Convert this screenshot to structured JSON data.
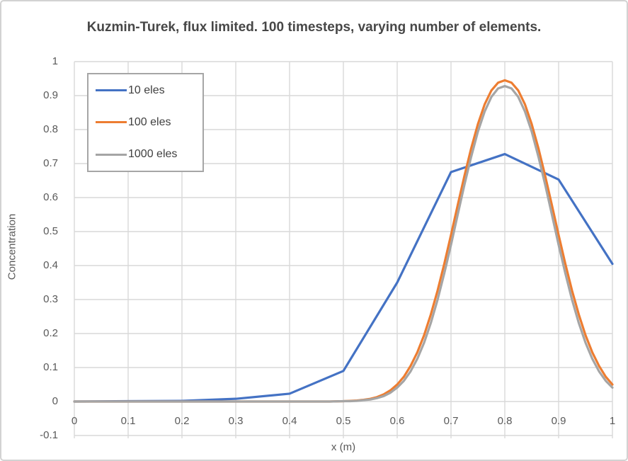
{
  "chart": {
    "title": "Kuzmin-Turek, flux limited. 100 timesteps, varying number of elements.",
    "x_axis": {
      "label": "x (m)",
      "ticks": [
        "0",
        "0.1",
        "0.2",
        "0.3",
        "0.4",
        "0.5",
        "0.6",
        "0.7",
        "0.8",
        "0.9",
        "1"
      ]
    },
    "y_axis": {
      "label": "Concentration",
      "ticks": [
        "1",
        "0.9",
        "0.8",
        "0.7",
        "0.6",
        "0.5",
        "0.4",
        "0.3",
        "0.2",
        "0.1",
        "0",
        "-0.1"
      ]
    },
    "colors": {
      "gridline": "#d9d9d9",
      "axis_text": "#595959",
      "title_text": "#474747",
      "legend_border": "#a6a6a6",
      "series_blue": "#4472C4",
      "series_orange": "#ED7D31",
      "series_gray": "#A5A5A5"
    }
  },
  "chart_data": {
    "type": "line",
    "title": "Kuzmin-Turek, flux limited. 100 timesteps, varying number of elements.",
    "xlabel": "x (m)",
    "ylabel": "Concentration",
    "xlim": [
      0,
      1
    ],
    "ylim": [
      -0.1,
      1
    ],
    "x_tick_step": 0.1,
    "y_tick_step": 0.1,
    "grid": true,
    "legend_position": "inside-top-left",
    "series": [
      {
        "name": "10 eles",
        "color": "#4472C4",
        "x": [
          0,
          0.1,
          0.2,
          0.3,
          0.4,
          0.5,
          0.6,
          0.7,
          0.8,
          0.9,
          1
        ],
        "y": [
          0,
          0.001,
          0.002,
          0.008,
          0.023,
          0.09,
          0.35,
          0.675,
          0.728,
          0.653,
          0.405
        ]
      },
      {
        "name": "100 eles",
        "color": "#ED7D31",
        "x": [
          0,
          0.1,
          0.2,
          0.3,
          0.4,
          0.45,
          0.475,
          0.5,
          0.5125,
          0.525,
          0.5375,
          0.55,
          0.5625,
          0.575,
          0.5875,
          0.6,
          0.6125,
          0.625,
          0.6375,
          0.65,
          0.6625,
          0.675,
          0.6875,
          0.7,
          0.7125,
          0.725,
          0.7375,
          0.75,
          0.7625,
          0.775,
          0.7875,
          0.8,
          0.8125,
          0.825,
          0.8375,
          0.85,
          0.8625,
          0.875,
          0.8875,
          0.9,
          0.9125,
          0.925,
          0.9375,
          0.95,
          0.9625,
          0.975,
          0.9875,
          1
        ],
        "y": [
          0,
          0,
          0,
          0,
          0,
          0,
          0,
          0.001,
          0.002,
          0.003,
          0.005,
          0.008,
          0.013,
          0.021,
          0.033,
          0.05,
          0.073,
          0.105,
          0.145,
          0.195,
          0.256,
          0.326,
          0.405,
          0.49,
          0.578,
          0.664,
          0.745,
          0.816,
          0.874,
          0.915,
          0.938,
          0.945,
          0.938,
          0.915,
          0.874,
          0.816,
          0.745,
          0.664,
          0.578,
          0.49,
          0.405,
          0.326,
          0.256,
          0.195,
          0.145,
          0.105,
          0.073,
          0.05
        ]
      },
      {
        "name": "1000 eles",
        "color": "#A5A5A5",
        "x": [
          0,
          0.1,
          0.2,
          0.3,
          0.4,
          0.45,
          0.475,
          0.5,
          0.5125,
          0.525,
          0.5375,
          0.55,
          0.5625,
          0.575,
          0.5875,
          0.6,
          0.6125,
          0.625,
          0.6375,
          0.65,
          0.6625,
          0.675,
          0.6875,
          0.7,
          0.7125,
          0.725,
          0.7375,
          0.75,
          0.7625,
          0.775,
          0.7875,
          0.8,
          0.8125,
          0.825,
          0.8375,
          0.85,
          0.8625,
          0.875,
          0.8875,
          0.9,
          0.9125,
          0.925,
          0.9375,
          0.95,
          0.9625,
          0.975,
          0.9875,
          1
        ],
        "y": [
          0,
          0,
          0,
          0,
          0,
          0,
          0,
          0.001,
          0.001,
          0.002,
          0.004,
          0.006,
          0.01,
          0.016,
          0.026,
          0.041,
          0.061,
          0.089,
          0.126,
          0.173,
          0.231,
          0.299,
          0.377,
          0.461,
          0.55,
          0.638,
          0.72,
          0.794,
          0.853,
          0.896,
          0.921,
          0.928,
          0.921,
          0.896,
          0.853,
          0.794,
          0.72,
          0.638,
          0.55,
          0.461,
          0.377,
          0.299,
          0.231,
          0.173,
          0.126,
          0.089,
          0.061,
          0.041
        ]
      }
    ]
  }
}
